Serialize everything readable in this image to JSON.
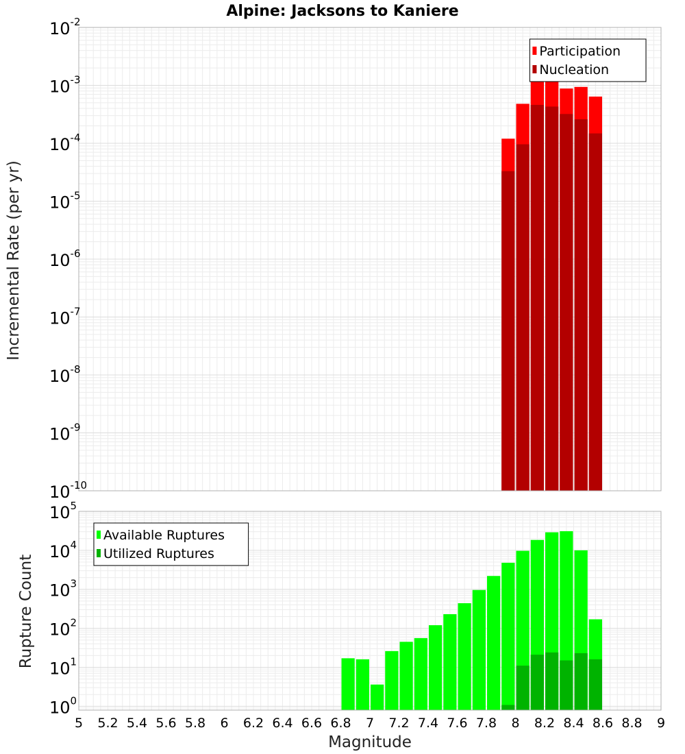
{
  "chart_data": {
    "type": "bar",
    "title": "Alpine: Jacksons to Kaniere",
    "xlabel": "Magnitude",
    "x_ticks": [
      "5",
      "5.2",
      "5.4",
      "5.6",
      "5.8",
      "6",
      "6.2",
      "6.4",
      "6.6",
      "6.8",
      "7",
      "7.2",
      "7.4",
      "7.6",
      "7.8",
      "8",
      "8.2",
      "8.4",
      "8.6",
      "8.8",
      "9"
    ],
    "xlim": [
      5,
      9
    ],
    "bin_width": 0.1,
    "panels": [
      {
        "ylabel": "Incremental Rate (per yr)",
        "yscale": "log",
        "ylim_exponents": [
          -10,
          -2
        ],
        "ytick_base": "10",
        "ytick_exponents": [
          "-10",
          "-9",
          "-8",
          "-7",
          "-6",
          "-5",
          "-4",
          "-3",
          "-2"
        ],
        "grid": true,
        "legend_position": "top-right",
        "series": [
          {
            "name": "Participation",
            "color": "#ff0000",
            "x": [
              7.95,
              8.05,
              8.15,
              8.25,
              8.35,
              8.45,
              8.55
            ],
            "values": [
              0.00012,
              0.00048,
              0.00128,
              0.00132,
              0.00088,
              0.00094,
              0.00064
            ]
          },
          {
            "name": "Nucleation",
            "color": "#b30000",
            "x": [
              7.95,
              8.05,
              8.15,
              8.25,
              8.35,
              8.45,
              8.55
            ],
            "values": [
              3.3e-05,
              9.6e-05,
              0.00046,
              0.00043,
              0.00032,
              0.00026,
              0.000148
            ]
          }
        ]
      },
      {
        "ylabel": "Rupture Count",
        "yscale": "log",
        "ylim_exponents": [
          -0.1,
          5
        ],
        "ytick_base": "10",
        "ytick_exponents": [
          "0",
          "1",
          "2",
          "3",
          "4",
          "5"
        ],
        "grid": true,
        "legend_position": "top-left",
        "series": [
          {
            "name": "Available Ruptures",
            "color": "#00ff00",
            "x": [
              6.85,
              6.95,
              7.05,
              7.15,
              7.25,
              7.35,
              7.45,
              7.55,
              7.65,
              7.75,
              7.85,
              7.95,
              8.05,
              8.15,
              8.25,
              8.35,
              8.45,
              8.55
            ],
            "values": [
              17,
              16,
              3.6,
              26,
              45,
              56,
              120,
              230,
              440,
              960,
              2200,
              4800,
              9700,
              18500,
              29000,
              31000,
              10000,
              170
            ]
          },
          {
            "name": "Utilized Ruptures",
            "color": "#00b300",
            "x": [
              7.95,
              8.05,
              8.15,
              8.25,
              8.35,
              8.45,
              8.55
            ],
            "values": [
              1.08,
              11,
              21,
              24,
              15,
              23,
              16
            ]
          }
        ]
      }
    ]
  }
}
